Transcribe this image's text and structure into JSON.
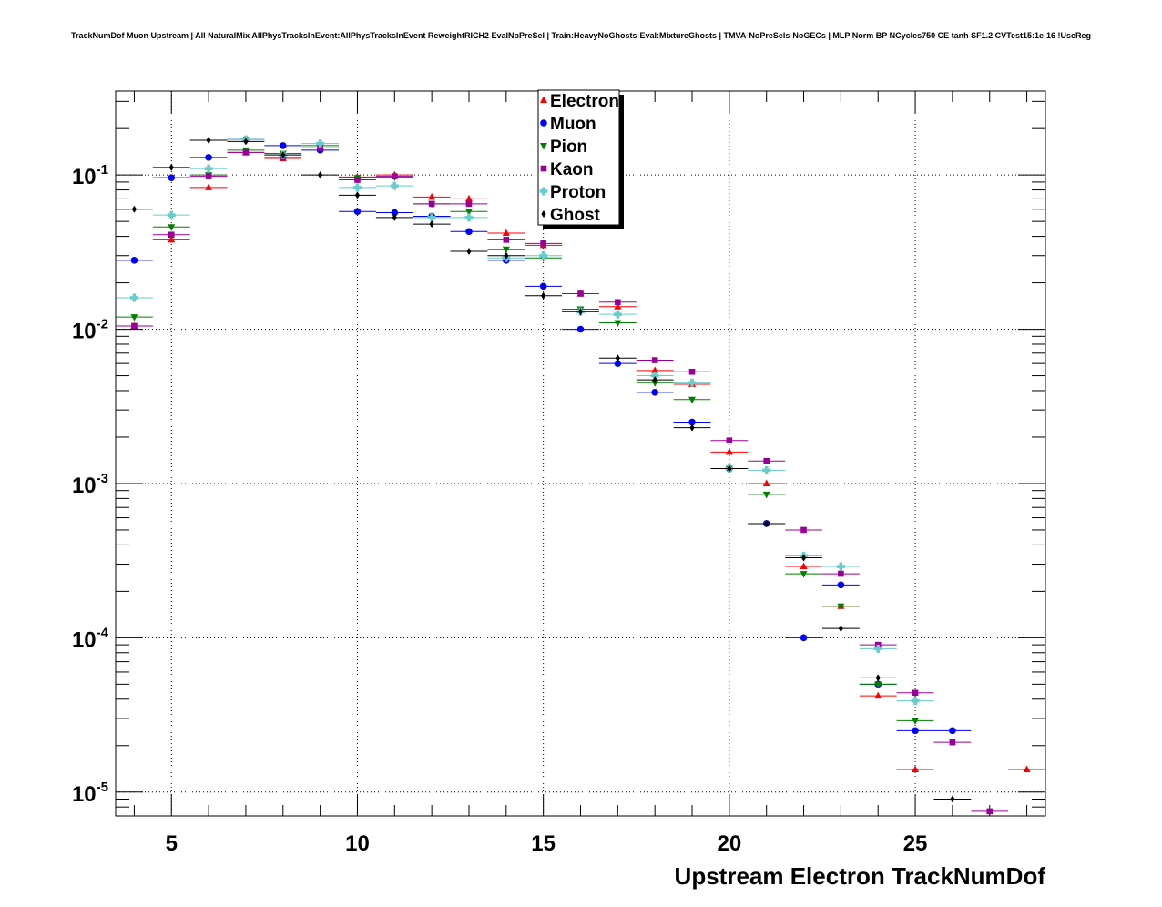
{
  "chart_data": {
    "type": "scatter",
    "title": "TrackNumDof Muon Upstream | All NaturalMix AllPhysTracksInEvent:AllPhysTracksInEvent ReweightRICH2 EvalNoPreSel | Train:HeavyNoGhosts-Eval:MixtureGhosts | TMVA-NoPreSels-NoGECs | MLP Norm BP NCycles750 CE tanh SF1.2 CVTest15:1e-16 !UseReg",
    "xlabel": "Upstream Electron TrackNumDof",
    "ylabel": "",
    "xlim": [
      3.5,
      28.5
    ],
    "ylim": [
      7e-06,
      0.35
    ],
    "yscale": "log",
    "grid": true,
    "legend_position": "top-center",
    "x_ticks": [
      {
        "value": 5,
        "label": "5"
      },
      {
        "value": 10,
        "label": "10"
      },
      {
        "value": 15,
        "label": "15"
      },
      {
        "value": 20,
        "label": "20"
      },
      {
        "value": 25,
        "label": "25"
      }
    ],
    "y_ticks": [
      {
        "value": 0.1,
        "base": "10",
        "exp": "-1"
      },
      {
        "value": 0.01,
        "base": "10",
        "exp": "-2"
      },
      {
        "value": 0.001,
        "base": "10",
        "exp": "-3"
      },
      {
        "value": 0.0001,
        "base": "10",
        "exp": "-4"
      },
      {
        "value": 1e-05,
        "base": "10",
        "exp": "-5"
      }
    ],
    "series": [
      {
        "name": "Electron",
        "color": "#ff0000",
        "marker": "triangle-up",
        "x": [
          4,
          5,
          6,
          7,
          8,
          9,
          10,
          11,
          12,
          13,
          14,
          15,
          16,
          17,
          18,
          19,
          20,
          21,
          22,
          23,
          24,
          25,
          28
        ],
        "y": [
          0.0105,
          0.038,
          0.083,
          0.14,
          0.128,
          0.15,
          0.097,
          0.1,
          0.072,
          0.07,
          0.042,
          0.035,
          0.017,
          0.014,
          0.0054,
          0.0044,
          0.0016,
          0.001,
          0.00029,
          0.00016,
          4.2e-05,
          1.4e-05,
          1.4e-05
        ]
      },
      {
        "name": "Muon",
        "color": "#0000ff",
        "marker": "circle",
        "x": [
          4,
          5,
          6,
          7,
          8,
          9,
          10,
          11,
          12,
          13,
          14,
          15,
          16,
          17,
          18,
          19,
          20,
          21,
          22,
          23,
          24,
          25,
          26
        ],
        "y": [
          0.028,
          0.096,
          0.13,
          0.17,
          0.155,
          0.145,
          0.058,
          0.057,
          0.054,
          0.043,
          0.028,
          0.019,
          0.01,
          0.006,
          0.0039,
          0.0025,
          0.00125,
          0.00055,
          0.0001,
          0.00022,
          5e-05,
          2.5e-05,
          2.5e-05
        ]
      },
      {
        "name": "Pion",
        "color": "#008000",
        "marker": "triangle-down",
        "x": [
          4,
          5,
          6,
          7,
          8,
          9,
          10,
          11,
          12,
          13,
          14,
          15,
          16,
          17,
          18,
          19,
          20,
          21,
          22,
          23,
          24,
          25
        ],
        "y": [
          0.012,
          0.046,
          0.1,
          0.145,
          0.138,
          0.155,
          0.096,
          0.097,
          0.065,
          0.058,
          0.033,
          0.029,
          0.0135,
          0.011,
          0.0045,
          0.0035,
          0.00125,
          0.00085,
          0.00026,
          0.00016,
          5e-05,
          2.9e-05
        ]
      },
      {
        "name": "Kaon",
        "color": "#990099",
        "marker": "square",
        "x": [
          4,
          5,
          6,
          7,
          8,
          9,
          10,
          11,
          12,
          13,
          14,
          15,
          16,
          17,
          18,
          19,
          20,
          21,
          22,
          23,
          24,
          25,
          26,
          27
        ],
        "y": [
          0.0105,
          0.041,
          0.098,
          0.14,
          0.13,
          0.15,
          0.093,
          0.098,
          0.065,
          0.065,
          0.038,
          0.036,
          0.017,
          0.015,
          0.0063,
          0.0053,
          0.0019,
          0.0014,
          0.0005,
          0.00026,
          9e-05,
          4.4e-05,
          2.1e-05,
          7.5e-06
        ]
      },
      {
        "name": "Proton",
        "color": "#66cccc",
        "marker": "cross",
        "x": [
          4,
          5,
          6,
          7,
          8,
          9,
          10,
          11,
          12,
          13,
          14,
          15,
          16,
          17,
          18,
          19,
          20,
          21,
          22,
          23,
          24,
          25
        ],
        "y": [
          0.016,
          0.055,
          0.11,
          0.17,
          0.135,
          0.16,
          0.083,
          0.085,
          0.053,
          0.053,
          0.029,
          0.03,
          0.013,
          0.0125,
          0.005,
          0.0045,
          0.00125,
          0.00122,
          0.00034,
          0.00029,
          8.5e-05,
          3.9e-05
        ]
      },
      {
        "name": "Ghost",
        "color": "#000000",
        "marker": "diamond",
        "x": [
          4,
          5,
          6,
          7,
          8,
          9,
          10,
          11,
          12,
          13,
          14,
          15,
          16,
          17,
          18,
          19,
          20,
          21,
          22,
          23,
          24,
          26
        ],
        "y": [
          0.06,
          0.112,
          0.168,
          0.165,
          0.135,
          0.1,
          0.074,
          0.053,
          0.048,
          0.032,
          0.03,
          0.0165,
          0.013,
          0.0065,
          0.0047,
          0.0023,
          0.00125,
          0.00055,
          0.00033,
          0.000115,
          5.5e-05,
          9e-06
        ]
      }
    ]
  }
}
